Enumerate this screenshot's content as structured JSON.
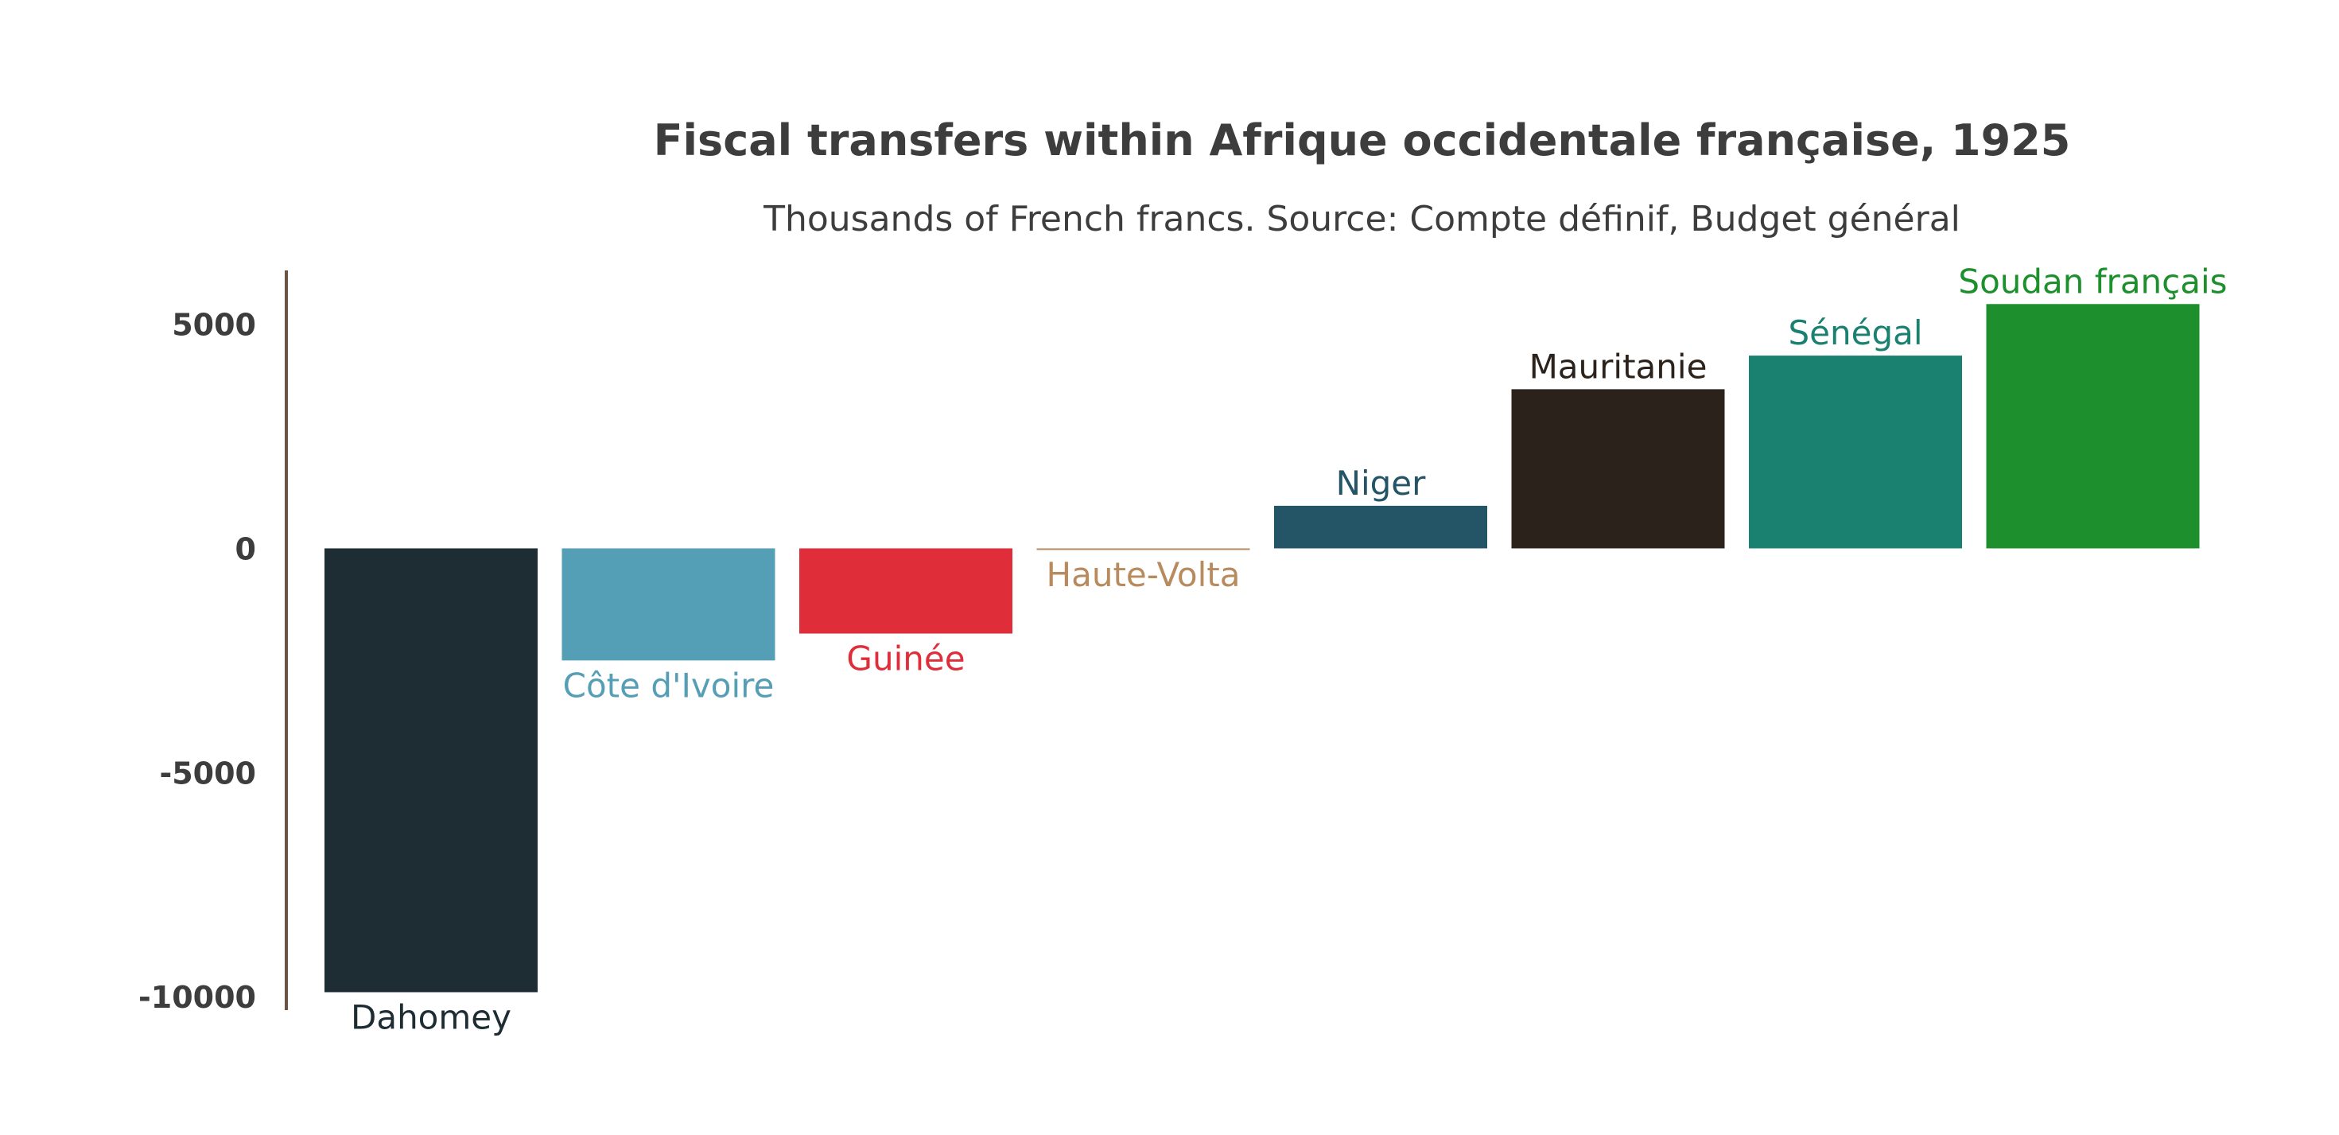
{
  "chart_data": {
    "type": "bar",
    "title": "Fiscal transfers within Afrique occidentale française, 1925",
    "subtitle": "Thousands of French francs. Source: Compte définif, Budget général",
    "xlabel": "",
    "ylabel": "",
    "ylim": [
      -10300,
      6200
    ],
    "yticks": [
      -10000,
      -5000,
      0,
      5000
    ],
    "ytick_labels": [
      "-10000",
      "-5000",
      "0",
      "5000"
    ],
    "grid": false,
    "legend": "none",
    "categories": [
      "Dahomey",
      "Côte d'Ivoire",
      "Guinée",
      "Haute-Volta",
      "Niger",
      "Mauritanie",
      "Sénégal",
      "Soudan français"
    ],
    "values": [
      -9900,
      -2500,
      -1900,
      -30,
      950,
      3550,
      4300,
      5450
    ],
    "colors": [
      "#1e2c33",
      "#549eb6",
      "#df2d39",
      "#b88b5f",
      "#245566",
      "#2c221c",
      "#1a8070",
      "#1d8f2c"
    ],
    "axis_color": "#6b5344"
  }
}
